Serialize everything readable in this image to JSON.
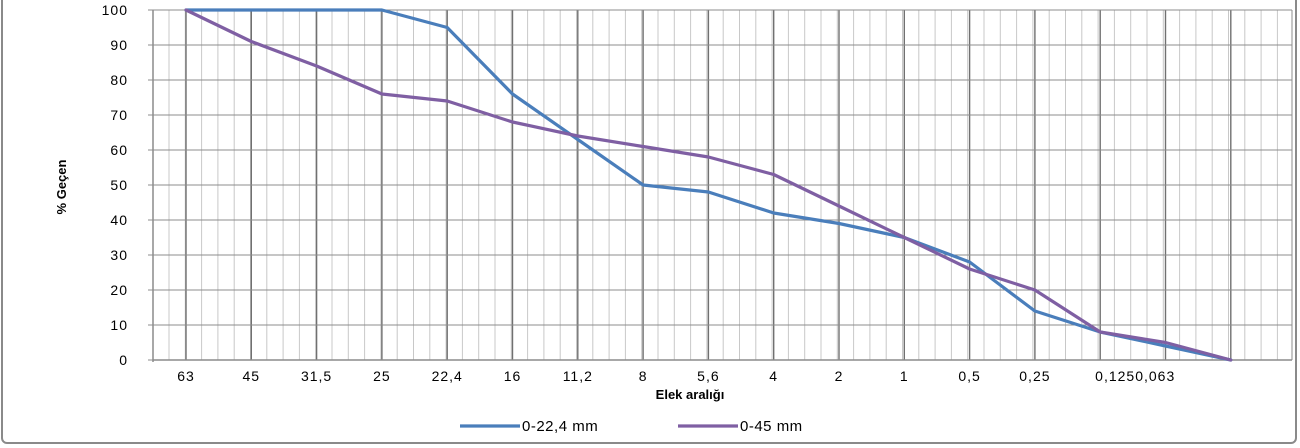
{
  "chart_data": {
    "type": "line",
    "xlabel": "Elek aralığı",
    "ylabel": "% Geçen",
    "categories": [
      "63",
      "45",
      "31,5",
      "25",
      "22,4",
      "16",
      "11,2",
      "8",
      "5,6",
      "4",
      "2",
      "1",
      "0,5",
      "0,25",
      "0,125",
      "0,063",
      ""
    ],
    "x_tick_labels": [
      "63",
      "45",
      "31,5",
      "25",
      "22,4",
      "16",
      "11,2",
      "8",
      "5,6",
      "4",
      "2",
      "1",
      "0,5",
      "0,25",
      "0,1250,063"
    ],
    "ylim": [
      0,
      100
    ],
    "y_ticks": [
      0,
      10,
      20,
      30,
      40,
      50,
      60,
      70,
      80,
      90,
      100
    ],
    "grid": true,
    "legend_position": "bottom",
    "series": [
      {
        "name": "0-22,4 mm",
        "color": "#4a7ebb",
        "values": [
          100,
          100,
          100,
          100,
          95,
          76,
          63,
          50,
          48,
          42,
          39,
          35,
          28,
          14,
          8,
          4,
          0
        ]
      },
      {
        "name": "0-45 mm",
        "color": "#7f5fa3",
        "values": [
          100,
          91,
          84,
          76,
          74,
          68,
          64,
          61,
          58,
          53,
          44,
          35,
          26,
          20,
          8,
          5,
          0
        ]
      }
    ]
  }
}
